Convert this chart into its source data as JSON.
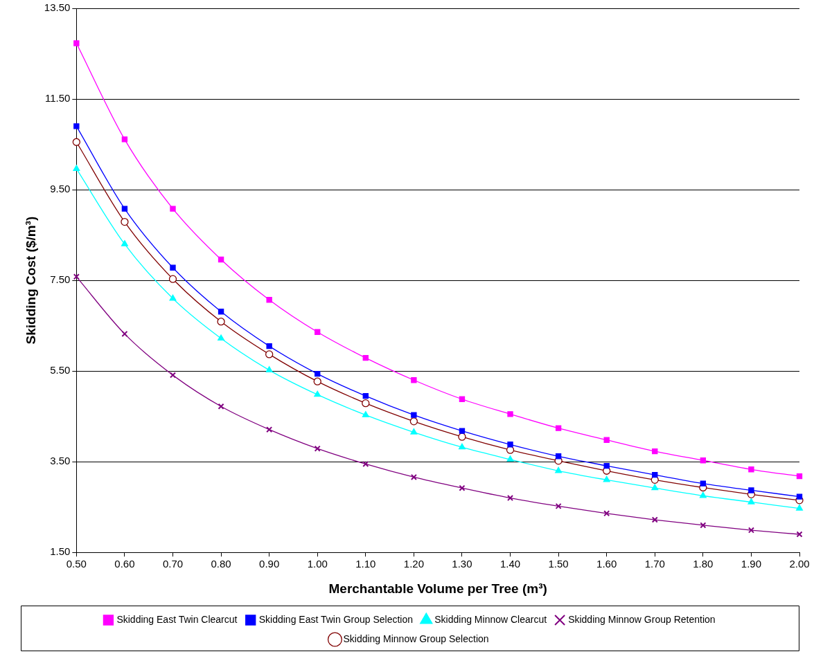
{
  "chart_data": {
    "type": "line",
    "xlabel": "Merchantable Volume per Tree (m³)",
    "ylabel": "Skidding Cost ($/m³)",
    "x": [
      0.5,
      0.6,
      0.7,
      0.8,
      0.9,
      1.0,
      1.1,
      1.2,
      1.3,
      1.4,
      1.5,
      1.6,
      1.7,
      1.8,
      1.9,
      2.0
    ],
    "xlim": [
      0.5,
      2.0
    ],
    "xticks": [
      {
        "value": 0.5,
        "label": "0.50"
      },
      {
        "value": 0.6,
        "label": "0.60"
      },
      {
        "value": 0.7,
        "label": "0.70"
      },
      {
        "value": 0.8,
        "label": "0.80"
      },
      {
        "value": 0.9,
        "label": "0.90"
      },
      {
        "value": 1.0,
        "label": "1.00"
      },
      {
        "value": 1.1,
        "label": "1.10"
      },
      {
        "value": 1.2,
        "label": "1.20"
      },
      {
        "value": 1.3,
        "label": "1.30"
      },
      {
        "value": 1.4,
        "label": "1.40"
      },
      {
        "value": 1.5,
        "label": "1.50"
      },
      {
        "value": 1.6,
        "label": "1.60"
      },
      {
        "value": 1.7,
        "label": "1.70"
      },
      {
        "value": 1.8,
        "label": "1.80"
      },
      {
        "value": 1.9,
        "label": "1.90"
      },
      {
        "value": 2.0,
        "label": "2.00"
      }
    ],
    "ylim": [
      1.5,
      13.5
    ],
    "yticks": [
      {
        "value": 1.5,
        "label": "1.50"
      },
      {
        "value": 3.5,
        "label": "3.50"
      },
      {
        "value": 5.5,
        "label": "5.50"
      },
      {
        "value": 7.5,
        "label": "7.50"
      },
      {
        "value": 9.5,
        "label": "9.50"
      },
      {
        "value": 11.5,
        "label": "11.50"
      },
      {
        "value": 13.5,
        "label": "13.50"
      }
    ],
    "grid": "y",
    "legend": "bottom",
    "line_style": "solid",
    "series": [
      {
        "name": "Skidding East Twin Clearcut",
        "color": "#ff00ff",
        "marker": "square",
        "values": [
          12.73,
          10.61,
          9.08,
          7.96,
          7.07,
          6.36,
          5.79,
          5.3,
          4.88,
          4.55,
          4.24,
          3.98,
          3.73,
          3.53,
          3.33,
          3.18
        ]
      },
      {
        "name": "Skidding East Twin Group Selection",
        "color": "#0000ff",
        "marker": "square",
        "values": [
          10.9,
          9.08,
          7.78,
          6.81,
          6.05,
          5.44,
          4.95,
          4.53,
          4.18,
          3.88,
          3.62,
          3.41,
          3.21,
          3.02,
          2.87,
          2.73
        ]
      },
      {
        "name": "Skidding Minnow Clearcut",
        "color": "#00ffff",
        "marker": "triangle",
        "values": [
          9.96,
          8.3,
          7.1,
          6.22,
          5.52,
          4.98,
          4.53,
          4.15,
          3.82,
          3.55,
          3.3,
          3.1,
          2.92,
          2.75,
          2.61,
          2.47
        ]
      },
      {
        "name": "Skidding Minnow Group Retention",
        "color": "#800080",
        "marker": "cross",
        "values": [
          7.58,
          6.32,
          5.41,
          4.72,
          4.21,
          3.79,
          3.45,
          3.16,
          2.92,
          2.7,
          2.52,
          2.36,
          2.22,
          2.1,
          1.99,
          1.9
        ]
      },
      {
        "name": "Skidding Minnow Group Selection",
        "color": "#800000",
        "marker": "circle",
        "values": [
          10.55,
          8.79,
          7.53,
          6.59,
          5.87,
          5.27,
          4.79,
          4.39,
          4.05,
          3.76,
          3.52,
          3.3,
          3.1,
          2.93,
          2.78,
          2.65
        ]
      }
    ]
  }
}
